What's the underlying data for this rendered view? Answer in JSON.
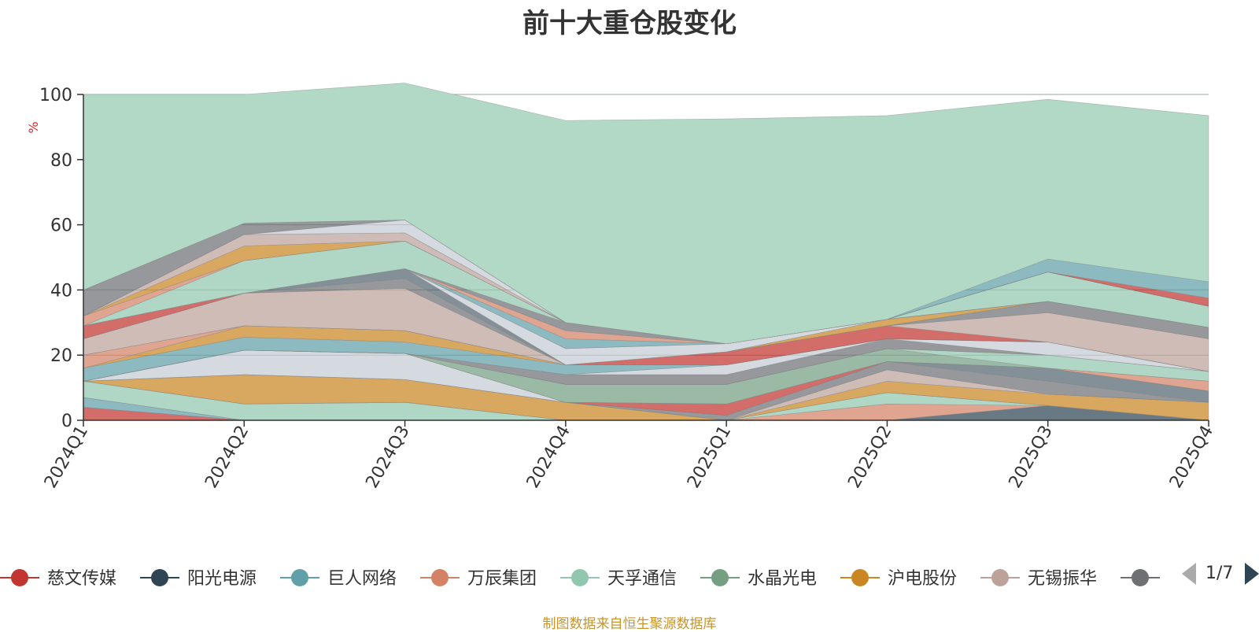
{
  "title": "前十大重仓股变化",
  "source_note": "制图数据来自恒生聚源数据库",
  "legend_pager": {
    "text": "1/7",
    "prev_icon": "triangle-left-icon",
    "next_icon": "triangle-right-icon"
  },
  "chart_data": {
    "type": "area",
    "stacked": true,
    "categories": [
      "2024Q1",
      "2024Q2",
      "2024Q3",
      "2024Q4",
      "2025Q1",
      "2025Q2",
      "2025Q3",
      "2025Q4"
    ],
    "ylabel": "%",
    "ylim": [
      0,
      100
    ],
    "yticks": [
      0,
      20,
      40,
      60,
      80,
      100
    ],
    "grid": true,
    "legend_position": "bottom",
    "legend_visible": [
      "慈文传媒",
      "阳光电源",
      "巨人网络",
      "万辰集团",
      "天孚通信",
      "水晶光电",
      "沪电股份",
      "无锡振华"
    ],
    "series": [
      {
        "name": "慈文传媒",
        "color": "#c23531",
        "values": [
          4,
          0,
          0,
          0,
          0,
          0,
          0,
          0
        ]
      },
      {
        "name": "阳光电源",
        "color": "#2f4554",
        "values": [
          0,
          0,
          0,
          0,
          0,
          0,
          4.5,
          0
        ]
      },
      {
        "name": "巨人网络",
        "color": "#61a0a8",
        "values": [
          3,
          0,
          0,
          0,
          0,
          0,
          0,
          0
        ]
      },
      {
        "name": "万辰集团",
        "color": "#d48265",
        "values": [
          0,
          0,
          0,
          0,
          0,
          5,
          0,
          0
        ]
      },
      {
        "name": "天孚通信",
        "color": "#91c7ae",
        "values": [
          5,
          5,
          5.5,
          0,
          0,
          3.5,
          0,
          0
        ]
      },
      {
        "name": "水晶光电",
        "color": "#749f83",
        "values": [
          0,
          0,
          0,
          0,
          0,
          0,
          0,
          0
        ]
      },
      {
        "name": "沪电股份",
        "color": "#ca8622",
        "values": [
          0,
          9,
          7,
          5.5,
          0,
          3.5,
          3.5,
          5.5
        ]
      },
      {
        "name": "无锡振华",
        "color": "#bda29a",
        "values": [
          0,
          0,
          0,
          0,
          0,
          3.5,
          0,
          0
        ]
      },
      {
        "name": "",
        "color": "#6e7074",
        "values": [
          0,
          0,
          0,
          0,
          1.5,
          2.5,
          4,
          0
        ]
      },
      {
        "name": "",
        "color": "#546570",
        "values": [
          0,
          0,
          0,
          0,
          0,
          0,
          4,
          3.5
        ]
      },
      {
        "name": "",
        "color": "#c23531",
        "values": [
          0,
          0,
          0,
          0,
          3.5,
          0,
          0,
          0
        ]
      },
      {
        "name": "",
        "color": "#c4ccd3",
        "values": [
          0,
          7.5,
          8,
          0,
          0,
          0,
          0,
          0
        ]
      },
      {
        "name": "",
        "color": "#d48265",
        "values": [
          0,
          0,
          0,
          0,
          0,
          0,
          0,
          3
        ]
      },
      {
        "name": "",
        "color": "#749f83",
        "values": [
          0,
          0,
          0,
          5.5,
          6,
          4,
          0,
          0
        ]
      },
      {
        "name": "",
        "color": "#91c7ae",
        "values": [
          0,
          0,
          0,
          0,
          0,
          0,
          4,
          3
        ]
      },
      {
        "name": "",
        "color": "#6e7074",
        "values": [
          0,
          0,
          0,
          3,
          3,
          3,
          0,
          0
        ]
      },
      {
        "name": "",
        "color": "#c4ccd3",
        "values": [
          0,
          0,
          0,
          0,
          3,
          0,
          4,
          0
        ]
      },
      {
        "name": "",
        "color": "#61a0a8",
        "values": [
          4,
          4,
          3.5,
          3,
          0,
          0,
          0,
          0
        ]
      },
      {
        "name": "",
        "color": "#ca8622",
        "values": [
          0,
          3.5,
          3.5,
          0,
          0,
          0,
          0,
          0
        ]
      },
      {
        "name": "",
        "color": "#d48265",
        "values": [
          4,
          0,
          0,
          0,
          0,
          0,
          0,
          0
        ]
      },
      {
        "name": "",
        "color": "#c23531",
        "values": [
          0,
          0,
          0,
          0,
          4,
          4,
          0,
          0
        ]
      },
      {
        "name": "",
        "color": "#bda29a",
        "values": [
          5,
          10,
          13,
          0,
          0,
          0,
          9,
          10
        ]
      },
      {
        "name": "",
        "color": "#6e7074",
        "values": [
          0,
          0,
          3,
          0,
          0,
          0,
          3.5,
          3.5
        ]
      },
      {
        "name": "",
        "color": "#546570",
        "values": [
          0,
          0,
          3,
          0,
          0,
          0,
          0,
          0
        ]
      },
      {
        "name": "",
        "color": "#c23531",
        "values": [
          4,
          0,
          0,
          0,
          0,
          0,
          0,
          0
        ]
      },
      {
        "name": "",
        "color": "#ca8622",
        "values": [
          0,
          0,
          0,
          0,
          0,
          2,
          0,
          0
        ]
      },
      {
        "name": "",
        "color": "#c4ccd3",
        "values": [
          0,
          0,
          0,
          5,
          2.5,
          0,
          0,
          0
        ]
      },
      {
        "name": "",
        "color": "#61a0a8",
        "values": [
          0,
          0,
          0,
          3,
          0,
          0,
          0,
          0
        ]
      },
      {
        "name": "",
        "color": "#d48265",
        "values": [
          0,
          0,
          0,
          2.5,
          0,
          0,
          0,
          0
        ]
      },
      {
        "name": "",
        "color": "#6e7074",
        "values": [
          0,
          0,
          0,
          2.5,
          0,
          0,
          0,
          0
        ]
      },
      {
        "name": "",
        "color": "#91c7ae",
        "values": [
          0,
          10,
          8.5,
          0,
          0,
          0,
          9,
          6.5
        ]
      },
      {
        "name": "",
        "color": "#d48265",
        "values": [
          3,
          0,
          0,
          0,
          0,
          0,
          0,
          0
        ]
      },
      {
        "name": "",
        "color": "#ca8622",
        "values": [
          0,
          4.5,
          0,
          0,
          0,
          0,
          0,
          0
        ]
      },
      {
        "name": "",
        "color": "#bda29a",
        "values": [
          0,
          3.5,
          2.5,
          0,
          0,
          0,
          0,
          0
        ]
      },
      {
        "name": "",
        "color": "#c4ccd3",
        "values": [
          0,
          0,
          4,
          0,
          0,
          0,
          0,
          0
        ]
      },
      {
        "name": "",
        "color": "#6e7074",
        "values": [
          8,
          3.5,
          0,
          0,
          0,
          0,
          0,
          0
        ]
      },
      {
        "name": "",
        "color": "#546570",
        "values": [
          0,
          0,
          0,
          0,
          0,
          0,
          0,
          0
        ]
      },
      {
        "name": "",
        "color": "#c23531",
        "values": [
          0,
          0,
          0,
          0,
          0,
          0,
          0,
          2.5
        ]
      },
      {
        "name": "",
        "color": "#61a0a8",
        "values": [
          0,
          0,
          0,
          0,
          0,
          0,
          4,
          5
        ]
      },
      {
        "name": "",
        "color": "#b2d8c6",
        "values": [
          60,
          39.5,
          42,
          62,
          69,
          62.5,
          49,
          51
        ]
      }
    ]
  }
}
